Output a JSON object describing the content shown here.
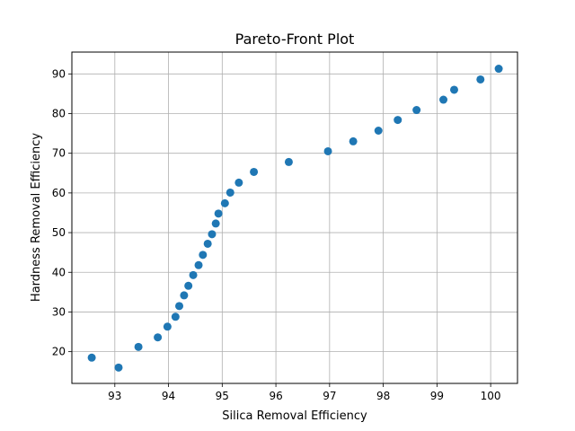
{
  "chart_data": {
    "type": "scatter",
    "title": "Pareto-Front Plot",
    "xlabel": "Silica Removal Efficiency",
    "ylabel": "Hardness Removal Efficiency",
    "xlim": [
      92.2,
      100.5
    ],
    "ylim": [
      12.0,
      95.5
    ],
    "xticks": [
      93,
      94,
      95,
      96,
      97,
      98,
      99,
      100
    ],
    "yticks": [
      20,
      30,
      40,
      50,
      60,
      70,
      80,
      90
    ],
    "grid": true,
    "marker_color": "#1f77b4",
    "points": [
      {
        "x": 92.57,
        "y": 18.5
      },
      {
        "x": 93.07,
        "y": 16.0
      },
      {
        "x": 93.44,
        "y": 21.2
      },
      {
        "x": 93.8,
        "y": 23.6
      },
      {
        "x": 93.98,
        "y": 26.3
      },
      {
        "x": 94.13,
        "y": 28.8
      },
      {
        "x": 94.2,
        "y": 31.5
      },
      {
        "x": 94.29,
        "y": 34.2
      },
      {
        "x": 94.37,
        "y": 36.6
      },
      {
        "x": 94.46,
        "y": 39.3
      },
      {
        "x": 94.56,
        "y": 41.8
      },
      {
        "x": 94.64,
        "y": 44.4
      },
      {
        "x": 94.73,
        "y": 47.2
      },
      {
        "x": 94.81,
        "y": 49.6
      },
      {
        "x": 94.88,
        "y": 52.3
      },
      {
        "x": 94.93,
        "y": 54.8
      },
      {
        "x": 95.05,
        "y": 57.4
      },
      {
        "x": 95.15,
        "y": 60.1
      },
      {
        "x": 95.31,
        "y": 62.6
      },
      {
        "x": 95.59,
        "y": 65.3
      },
      {
        "x": 96.24,
        "y": 67.8
      },
      {
        "x": 96.97,
        "y": 70.5
      },
      {
        "x": 97.44,
        "y": 73.0
      },
      {
        "x": 97.91,
        "y": 75.7
      },
      {
        "x": 98.27,
        "y": 78.4
      },
      {
        "x": 98.62,
        "y": 80.9
      },
      {
        "x": 99.12,
        "y": 83.5
      },
      {
        "x": 99.32,
        "y": 86.0
      },
      {
        "x": 99.81,
        "y": 88.6
      },
      {
        "x": 100.15,
        "y": 91.3
      }
    ]
  }
}
